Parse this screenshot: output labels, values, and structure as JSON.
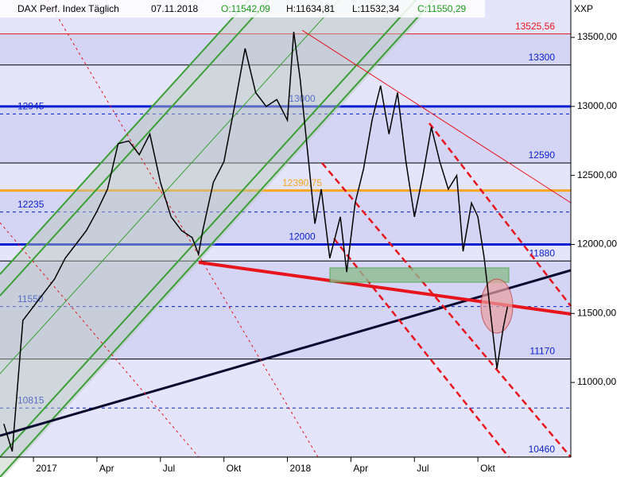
{
  "chart_data": {
    "type": "line",
    "title": "DAX Perf. Index Täglich",
    "date": "07.11.2018",
    "ohlc": [
      "O:11542,09",
      "H:11634,81",
      "L:11532,34",
      "C:11550,29"
    ],
    "axis_unit": "XXP",
    "color": "#000000",
    "x": [
      -1.4,
      -1.0,
      -0.5,
      0,
      0.5,
      1.0,
      1.5,
      2.0,
      2.5,
      3.0,
      3.5,
      4.0,
      4.5,
      5.0,
      5.5,
      6.0,
      6.5,
      7.0,
      7.5,
      7.8,
      8.0,
      8.5,
      9.0,
      9.5,
      10.0,
      10.5,
      11.0,
      11.5,
      12.0,
      12.3,
      12.6,
      13.0,
      13.3,
      13.6,
      14.0,
      14.5,
      14.8,
      15.2,
      15.6,
      16.0,
      16.4,
      16.8,
      17.2,
      17.6,
      18.0,
      18.4,
      18.8,
      19.2,
      19.6,
      20.0,
      20.3,
      20.7,
      21.0,
      21.3,
      21.6,
      21.9,
      22.2,
      22.4
    ],
    "values": [
      10700,
      10500,
      11450,
      11550,
      11650,
      11750,
      11900,
      12000,
      12100,
      12240,
      12400,
      12730,
      12750,
      12650,
      12800,
      12450,
      12200,
      12100,
      12050,
      11930,
      12100,
      12450,
      12600,
      13000,
      13420,
      13100,
      13000,
      13050,
      12900,
      13540,
      13200,
      12600,
      12150,
      12400,
      11900,
      12200,
      11800,
      12300,
      12550,
      12900,
      13150,
      12800,
      13100,
      12600,
      12200,
      12500,
      12850,
      12600,
      12400,
      12500,
      11950,
      12300,
      12200,
      11900,
      11500,
      11100,
      11400,
      11550
    ],
    "xlim": [
      -1.58,
      25.39
    ],
    "ylim": [
      10459,
      13771
    ],
    "xticks": [
      {
        "value": 0,
        "label": "2017"
      },
      {
        "value": 3,
        "label": "Apr"
      },
      {
        "value": 6,
        "label": "Jul"
      },
      {
        "value": 9,
        "label": "Okt"
      },
      {
        "value": 12,
        "label": "2018"
      },
      {
        "value": 15,
        "label": "Apr"
      },
      {
        "value": 18,
        "label": "Jul"
      },
      {
        "value": 21,
        "label": "Okt"
      }
    ],
    "yticks": [
      {
        "value": 11000,
        "label": "11000,00"
      },
      {
        "value": 11500,
        "label": "11500,00"
      },
      {
        "value": 12000,
        "label": "12000,00"
      },
      {
        "value": 12500,
        "label": "12500,00"
      },
      {
        "value": 13000,
        "label": "13000,00"
      },
      {
        "value": 13500,
        "label": "13500,00"
      }
    ],
    "levels": [
      {
        "value": 13525.56,
        "label": "13525,56",
        "color": "#e8141c",
        "style": "solid"
      },
      {
        "value": 13300,
        "label": "13300",
        "color": "#000000",
        "style": "solid"
      },
      {
        "value": 13000,
        "label": "13000",
        "color": "#0a1ed2",
        "style": "thick"
      },
      {
        "value": 12945,
        "label": "12945",
        "color": "#0a1ed2",
        "style": "dashed"
      },
      {
        "value": 12590,
        "label": "12590",
        "color": "#000000",
        "style": "solid"
      },
      {
        "value": 12390.75,
        "label": "12390,75",
        "color": "#f5a623",
        "style": "thick"
      },
      {
        "value": 12235,
        "label": "12235",
        "color": "#0a1ed2",
        "style": "dashed"
      },
      {
        "value": 12000,
        "label": "12000",
        "color": "#0a1ed2",
        "style": "thick"
      },
      {
        "value": 11880,
        "label": "11880",
        "color": "#000000",
        "style": "solid"
      },
      {
        "value": 11550,
        "label": "11550",
        "color": "#0a1ed2",
        "style": "dashed"
      },
      {
        "value": 11170,
        "label": "11170",
        "color": "#000000",
        "style": "solid"
      },
      {
        "value": 10815,
        "label": "10815",
        "color": "#0a1ed2",
        "style": "dashed"
      },
      {
        "value": 10460,
        "label": "10460",
        "color": "#000000",
        "style": "solid"
      }
    ]
  }
}
